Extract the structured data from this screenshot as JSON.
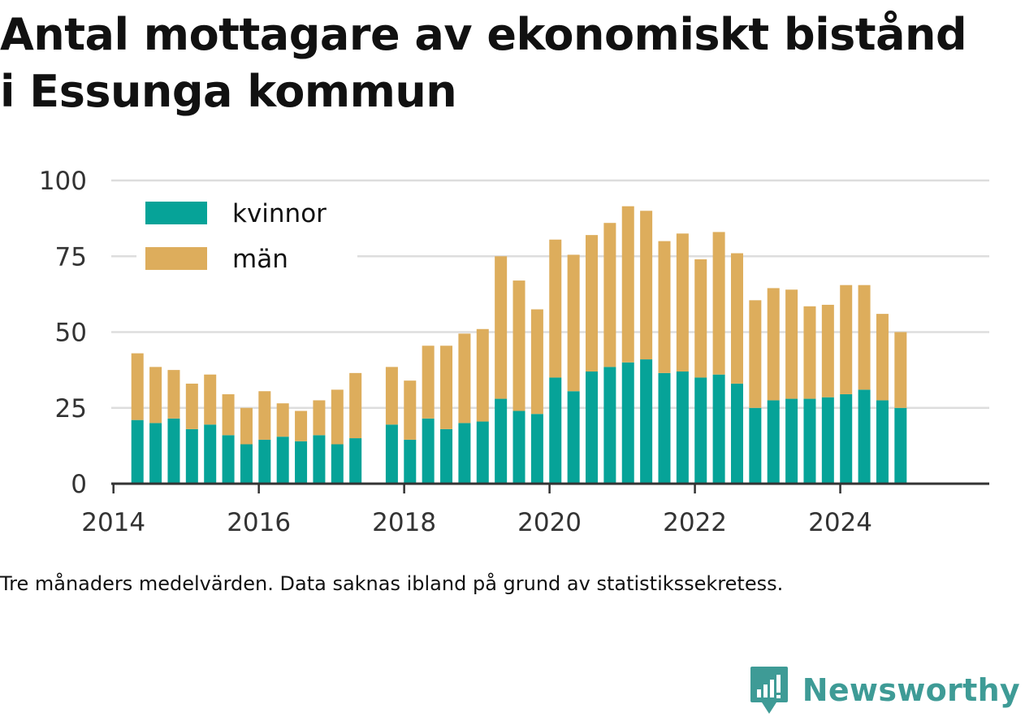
{
  "title_lines": [
    "Antal mottagare av ekonomiskt bistånd",
    "i Essunga kommun"
  ],
  "note": "Tre månaders medelvärden. Data saknas ibland på grund av statistikssekretess.",
  "brand": {
    "name": "Newsworthy",
    "icon": "newsworthy-logo-icon",
    "color": "#3e9b96"
  },
  "chart_data": {
    "type": "bar",
    "stacked": true,
    "ylim": [
      0,
      100
    ],
    "yticks": [
      0,
      25,
      50,
      75,
      100
    ],
    "xlim": [
      2013.97,
      2026.05
    ],
    "xticks": [
      2014,
      2016,
      2018,
      2020,
      2022,
      2024
    ],
    "grid": true,
    "legend_position": "top-left",
    "colors": {
      "kvinnor": "#06a398",
      "män": "#ddad5c",
      "grid": "#dddddd",
      "axis": "#333333"
    },
    "x": [
      2014.33,
      2014.58,
      2014.83,
      2015.08,
      2015.33,
      2015.58,
      2015.83,
      2016.08,
      2016.33,
      2016.58,
      2016.83,
      2017.08,
      2017.33,
      2017.83,
      2018.08,
      2018.33,
      2018.58,
      2018.83,
      2019.08,
      2019.33,
      2019.58,
      2019.83,
      2020.08,
      2020.33,
      2020.58,
      2020.83,
      2021.08,
      2021.33,
      2021.58,
      2021.83,
      2022.08,
      2022.33,
      2022.58,
      2022.83,
      2023.08,
      2023.33,
      2023.58,
      2023.83,
      2024.08,
      2024.33,
      2024.58,
      2024.83
    ],
    "series": [
      {
        "name": "kvinnor",
        "values": [
          21,
          20,
          21.5,
          18,
          19.5,
          16,
          13,
          14.5,
          15.5,
          14,
          16,
          13,
          15,
          19.5,
          14.5,
          21.5,
          18,
          20,
          20.5,
          28,
          24,
          23,
          35,
          30.5,
          37,
          38.5,
          40,
          41,
          36.5,
          37,
          35,
          36,
          33,
          25,
          27.5,
          28,
          28,
          28.5,
          29.5,
          31,
          27.5,
          25
        ]
      },
      {
        "name": "män",
        "values": [
          22,
          18.5,
          16,
          15,
          16.5,
          13.5,
          12,
          16,
          11,
          10,
          11.5,
          18,
          21.5,
          19,
          19.5,
          24,
          27.5,
          29.5,
          30.5,
          47,
          43,
          34.5,
          45.5,
          45,
          45,
          47.5,
          51.5,
          49,
          43.5,
          45.5,
          39,
          47,
          43,
          35.5,
          37,
          36,
          30.5,
          30.5,
          36,
          34.5,
          28.5,
          25
        ]
      }
    ]
  }
}
